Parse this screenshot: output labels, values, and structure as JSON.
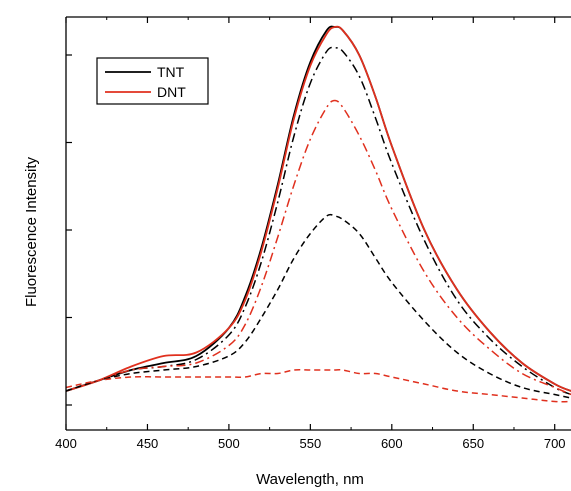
{
  "chart_data": {
    "type": "line",
    "title": "",
    "xlabel": "Wavelength, nm",
    "ylabel": "Fluorescence Intensity",
    "xlim": [
      400,
      710
    ],
    "ylim": [
      0,
      1.1
    ],
    "xticks": [
      400,
      450,
      500,
      550,
      600,
      650,
      700
    ],
    "xtick_labels": [
      "400",
      "450",
      "500",
      "550",
      "600",
      "650",
      "700"
    ],
    "y_tick_labels_shown": false,
    "grid": false,
    "legend": {
      "position": "top-left",
      "entries": [
        {
          "label": "TNT",
          "color": "#000000"
        },
        {
          "label": "DNT",
          "color": "#e0301e"
        }
      ]
    },
    "colors": {
      "tnt": "#000000",
      "dnt": "#e0301e"
    },
    "x": [
      400,
      420,
      440,
      460,
      480,
      500,
      510,
      520,
      530,
      540,
      550,
      560,
      565,
      570,
      580,
      590,
      600,
      620,
      640,
      660,
      680,
      700,
      710
    ],
    "series": [
      {
        "group": "TNT",
        "color": "#000000",
        "dash": "solid",
        "values": [
          0.04,
          0.07,
          0.1,
          0.12,
          0.14,
          0.22,
          0.31,
          0.45,
          0.63,
          0.83,
          0.98,
          1.07,
          1.08,
          1.07,
          1.0,
          0.88,
          0.74,
          0.5,
          0.33,
          0.21,
          0.12,
          0.06,
          0.04
        ]
      },
      {
        "group": "DNT",
        "color": "#e0301e",
        "dash": "solid",
        "values": [
          0.04,
          0.07,
          0.11,
          0.14,
          0.15,
          0.22,
          0.3,
          0.44,
          0.62,
          0.82,
          0.97,
          1.06,
          1.08,
          1.07,
          1.0,
          0.88,
          0.74,
          0.5,
          0.33,
          0.21,
          0.12,
          0.06,
          0.04
        ]
      },
      {
        "group": "TNT",
        "color": "#000000",
        "dash": "dash-dot",
        "values": [
          0.04,
          0.07,
          0.1,
          0.11,
          0.13,
          0.2,
          0.28,
          0.41,
          0.58,
          0.77,
          0.92,
          1.01,
          1.02,
          1.01,
          0.94,
          0.82,
          0.69,
          0.47,
          0.3,
          0.19,
          0.11,
          0.05,
          0.03
        ]
      },
      {
        "group": "DNT",
        "color": "#e0301e",
        "dash": "dash-dot",
        "values": [
          0.04,
          0.07,
          0.1,
          0.11,
          0.12,
          0.17,
          0.23,
          0.34,
          0.48,
          0.63,
          0.76,
          0.85,
          0.87,
          0.85,
          0.77,
          0.67,
          0.56,
          0.38,
          0.25,
          0.16,
          0.09,
          0.05,
          0.03
        ]
      },
      {
        "group": "TNT",
        "color": "#000000",
        "dash": "dashed",
        "values": [
          0.04,
          0.07,
          0.09,
          0.1,
          0.11,
          0.14,
          0.18,
          0.25,
          0.33,
          0.42,
          0.49,
          0.54,
          0.54,
          0.53,
          0.49,
          0.42,
          0.35,
          0.24,
          0.15,
          0.09,
          0.05,
          0.03,
          0.02
        ]
      },
      {
        "group": "DNT",
        "color": "#e0301e",
        "dash": "dashed",
        "values": [
          0.05,
          0.07,
          0.08,
          0.08,
          0.08,
          0.08,
          0.08,
          0.09,
          0.09,
          0.1,
          0.1,
          0.1,
          0.1,
          0.1,
          0.09,
          0.09,
          0.08,
          0.06,
          0.04,
          0.03,
          0.02,
          0.01,
          0.01
        ]
      }
    ]
  }
}
